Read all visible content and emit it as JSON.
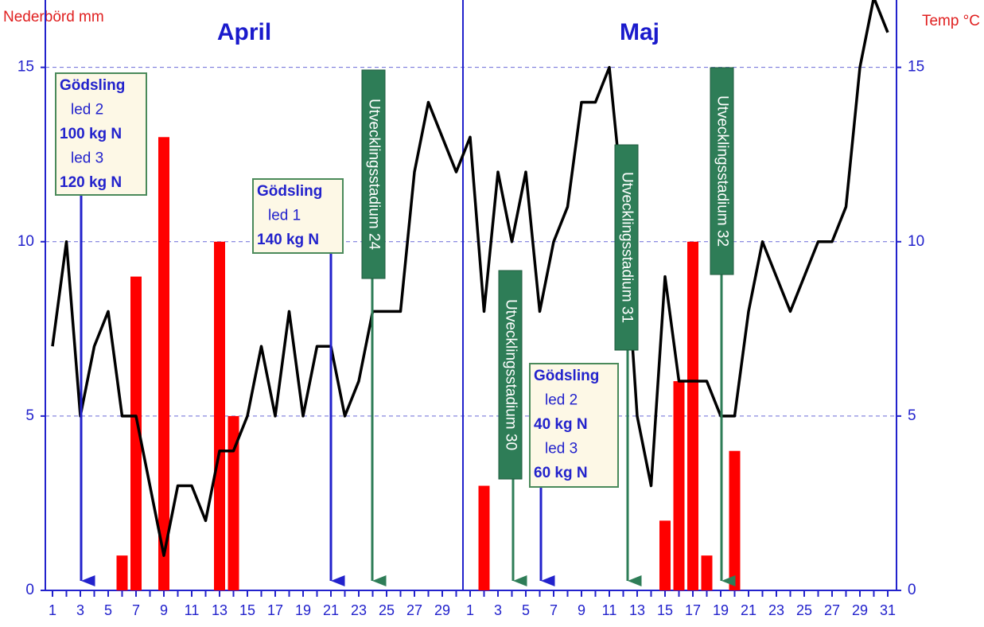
{
  "chart_data": {
    "type": "bar",
    "ylabel": "Nederbörd mm",
    "y2label": "Temp °C",
    "months": [
      "April",
      "Maj"
    ],
    "categories": [
      "1",
      null,
      "3",
      null,
      "5",
      null,
      "7",
      null,
      "9",
      null,
      "11",
      null,
      "13",
      null,
      "15",
      null,
      "17",
      null,
      "19",
      null,
      "21",
      null,
      "23",
      null,
      "25",
      null,
      "27",
      null,
      "29",
      null,
      "1",
      null,
      "3",
      null,
      "5",
      null,
      "7",
      null,
      "9",
      null,
      "11",
      null,
      "13",
      null,
      "15",
      null,
      "17",
      null,
      "19",
      null,
      "21",
      null,
      "23",
      null,
      "25",
      null,
      "27",
      null,
      "29",
      null,
      "31"
    ],
    "series": [
      {
        "type": "bar",
        "color": "#ff0000",
        "values": [
          0,
          0,
          0,
          0,
          0,
          1,
          9,
          0,
          13,
          0,
          0,
          0,
          10,
          5,
          0,
          0,
          0,
          0,
          0,
          0,
          0,
          0,
          0,
          0,
          0,
          0,
          0,
          0,
          0,
          0,
          0,
          3,
          0,
          0,
          0,
          0,
          0,
          0,
          0,
          0,
          0,
          0,
          0,
          0,
          2,
          6,
          10,
          1,
          0,
          4,
          0,
          0,
          0,
          0,
          0,
          0,
          0,
          0,
          0,
          0,
          0
        ]
      },
      {
        "type": "line",
        "axis": "y2",
        "color": "#000000",
        "values": [
          7,
          10,
          5,
          7,
          8,
          5,
          5,
          3,
          1,
          3,
          3,
          2,
          4,
          4,
          5,
          7,
          5,
          8,
          5,
          7,
          7,
          5,
          6,
          8,
          8,
          8,
          12,
          14,
          13,
          12,
          13,
          8,
          12,
          10,
          12,
          8,
          10,
          11,
          14,
          14,
          15,
          11,
          5,
          3,
          9,
          6,
          6,
          6,
          5,
          5,
          8,
          10,
          9,
          8,
          9,
          10,
          10,
          11,
          15,
          17,
          16
        ]
      }
    ],
    "ylim": [
      0,
      17
    ],
    "yticks": [
      0,
      5,
      10,
      15
    ],
    "y2lim": [
      0,
      17
    ],
    "y2ticks": [
      0,
      5,
      10,
      15
    ],
    "grid": true,
    "fertilizer_notes": [
      {
        "lines": [
          "Gödsling",
          "led 2",
          "100 kg N",
          "led 3",
          "120 kg N"
        ]
      },
      {
        "lines": [
          "Gödsling",
          "led 1",
          "140 kg N"
        ]
      },
      {
        "lines": [
          "Gödsling",
          "led 2",
          "40 kg N",
          "led 3",
          "60 kg N"
        ]
      }
    ],
    "stage_notes": [
      "Utvecklingsstadium 24",
      "Utvecklingsstadium 30",
      "Utvecklingsstadium 31",
      "Utvecklingsstadium 32"
    ]
  }
}
